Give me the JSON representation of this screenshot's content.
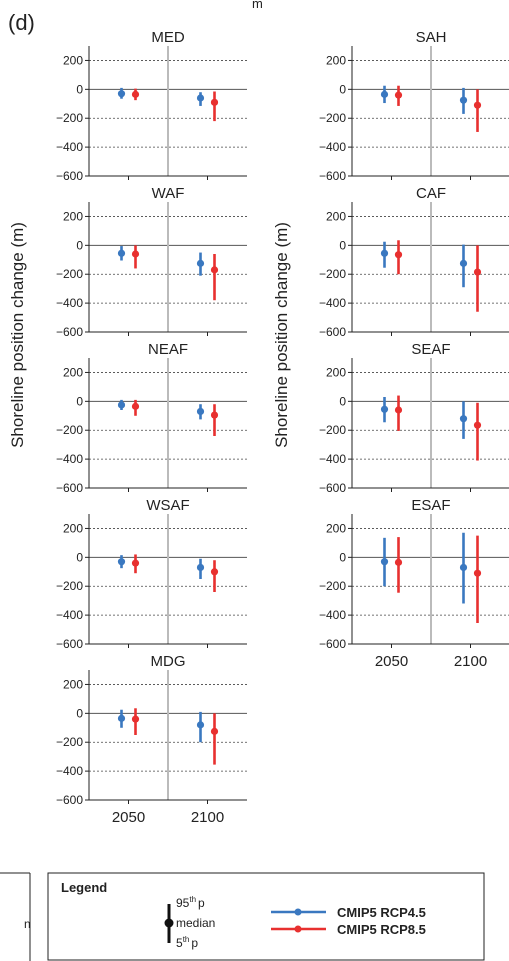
{
  "figure": {
    "panel_label": "(d)",
    "top_fragment": "m",
    "ylabel": "Shoreline position change (m)"
  },
  "legend": {
    "title": "Legend",
    "whisker": {
      "top": "95",
      "top_sup": "th",
      "top_suffix": "p",
      "mid": "median",
      "bottom": "5",
      "bottom_sup": "th",
      "bottom_suffix": "p"
    },
    "series": [
      {
        "name": "CMIP5 RCP4.5",
        "color": "#3a78c0"
      },
      {
        "name": "CMIP5 RCP8.5",
        "color": "#e8302f"
      }
    ],
    "left_fragment": "n"
  },
  "chart_data": [
    {
      "type": "errorbar",
      "title": "MED",
      "categories": [
        "2050",
        "2100"
      ],
      "ylim": [
        -600,
        300
      ],
      "yticks": [
        200,
        0,
        -200,
        -400,
        -600
      ],
      "ytick_labels": [
        "200",
        "0",
        "−200",
        "−400",
        "−600"
      ],
      "series": [
        {
          "name": "CMIP5 RCP4.5",
          "median": [
            -30,
            -60
          ],
          "p5": [
            -65,
            -115
          ],
          "p95": [
            10,
            -20
          ]
        },
        {
          "name": "CMIP5 RCP8.5",
          "median": [
            -35,
            -90
          ],
          "p5": [
            -75,
            -220
          ],
          "p95": [
            5,
            -15
          ]
        }
      ]
    },
    {
      "type": "errorbar",
      "title": "SAH",
      "categories": [
        "2050",
        "2100"
      ],
      "ylim": [
        -600,
        300
      ],
      "yticks": [
        200,
        0,
        -200,
        -400,
        -600
      ],
      "ytick_labels": [
        "200",
        "0",
        "−200",
        "−400",
        "−600"
      ],
      "series": [
        {
          "name": "CMIP5 RCP4.5",
          "median": [
            -35,
            -75
          ],
          "p5": [
            -95,
            -170
          ],
          "p95": [
            25,
            10
          ]
        },
        {
          "name": "CMIP5 RCP8.5",
          "median": [
            -40,
            -110
          ],
          "p5": [
            -115,
            -295
          ],
          "p95": [
            25,
            0
          ]
        }
      ]
    },
    {
      "type": "errorbar",
      "title": "WAF",
      "categories": [
        "2050",
        "2100"
      ],
      "ylim": [
        -600,
        300
      ],
      "yticks": [
        200,
        0,
        -200,
        -400,
        -600
      ],
      "ytick_labels": [
        "200",
        "0",
        "−200",
        "−400",
        "−600"
      ],
      "series": [
        {
          "name": "CMIP5 RCP4.5",
          "median": [
            -55,
            -125
          ],
          "p5": [
            -105,
            -210
          ],
          "p95": [
            -5,
            -50
          ]
        },
        {
          "name": "CMIP5 RCP8.5",
          "median": [
            -60,
            -170
          ],
          "p5": [
            -160,
            -380
          ],
          "p95": [
            0,
            -60
          ]
        }
      ]
    },
    {
      "type": "errorbar",
      "title": "CAF",
      "categories": [
        "2050",
        "2100"
      ],
      "ylim": [
        -600,
        300
      ],
      "yticks": [
        200,
        0,
        -200,
        -400,
        -600
      ],
      "ytick_labels": [
        "200",
        "0",
        "−200",
        "−400",
        "−600"
      ],
      "series": [
        {
          "name": "CMIP5 RCP4.5",
          "median": [
            -55,
            -125
          ],
          "p5": [
            -155,
            -290
          ],
          "p95": [
            25,
            5
          ]
        },
        {
          "name": "CMIP5 RCP8.5",
          "median": [
            -65,
            -185
          ],
          "p5": [
            -200,
            -460
          ],
          "p95": [
            35,
            0
          ]
        }
      ]
    },
    {
      "type": "errorbar",
      "title": "NEAF",
      "categories": [
        "2050",
        "2100"
      ],
      "ylim": [
        -600,
        300
      ],
      "yticks": [
        200,
        0,
        -200,
        -400,
        -600
      ],
      "ytick_labels": [
        "200",
        "0",
        "−200",
        "−400",
        "−600"
      ],
      "series": [
        {
          "name": "CMIP5 RCP4.5",
          "median": [
            -25,
            -70
          ],
          "p5": [
            -60,
            -125
          ],
          "p95": [
            10,
            -20
          ]
        },
        {
          "name": "CMIP5 RCP8.5",
          "median": [
            -35,
            -95
          ],
          "p5": [
            -100,
            -240
          ],
          "p95": [
            10,
            -20
          ]
        }
      ]
    },
    {
      "type": "errorbar",
      "title": "SEAF",
      "categories": [
        "2050",
        "2100"
      ],
      "ylim": [
        -600,
        300
      ],
      "yticks": [
        200,
        0,
        -200,
        -400,
        -600
      ],
      "ytick_labels": [
        "200",
        "0",
        "−200",
        "−400",
        "−600"
      ],
      "series": [
        {
          "name": "CMIP5 RCP4.5",
          "median": [
            -55,
            -120
          ],
          "p5": [
            -145,
            -260
          ],
          "p95": [
            30,
            0
          ]
        },
        {
          "name": "CMIP5 RCP8.5",
          "median": [
            -60,
            -165
          ],
          "p5": [
            -205,
            -410
          ],
          "p95": [
            40,
            -10
          ]
        }
      ]
    },
    {
      "type": "errorbar",
      "title": "WSAF",
      "categories": [
        "2050",
        "2100"
      ],
      "ylim": [
        -600,
        300
      ],
      "yticks": [
        200,
        0,
        -200,
        -400,
        -600
      ],
      "ytick_labels": [
        "200",
        "0",
        "−200",
        "−400",
        "−600"
      ],
      "series": [
        {
          "name": "CMIP5 RCP4.5",
          "median": [
            -30,
            -70
          ],
          "p5": [
            -75,
            -150
          ],
          "p95": [
            15,
            -10
          ]
        },
        {
          "name": "CMIP5 RCP8.5",
          "median": [
            -40,
            -100
          ],
          "p5": [
            -110,
            -240
          ],
          "p95": [
            20,
            -20
          ]
        }
      ]
    },
    {
      "type": "errorbar",
      "title": "ESAF",
      "categories": [
        "2050",
        "2100"
      ],
      "ylim": [
        -600,
        300
      ],
      "yticks": [
        200,
        0,
        -200,
        -400,
        -600
      ],
      "ytick_labels": [
        "200",
        "0",
        "−200",
        "−400",
        "−600"
      ],
      "series": [
        {
          "name": "CMIP5 RCP4.5",
          "median": [
            -30,
            -70
          ],
          "p5": [
            -200,
            -320
          ],
          "p95": [
            135,
            170
          ]
        },
        {
          "name": "CMIP5 RCP8.5",
          "median": [
            -35,
            -110
          ],
          "p5": [
            -245,
            -455
          ],
          "p95": [
            140,
            150
          ]
        }
      ]
    },
    {
      "type": "errorbar",
      "title": "MDG",
      "categories": [
        "2050",
        "2100"
      ],
      "ylim": [
        -600,
        300
      ],
      "yticks": [
        200,
        0,
        -200,
        -400,
        -600
      ],
      "ytick_labels": [
        "200",
        "0",
        "−200",
        "−400",
        "−600"
      ],
      "series": [
        {
          "name": "CMIP5 RCP4.5",
          "median": [
            -35,
            -80
          ],
          "p5": [
            -100,
            -200
          ],
          "p95": [
            25,
            10
          ]
        },
        {
          "name": "CMIP5 RCP8.5",
          "median": [
            -40,
            -125
          ],
          "p5": [
            -150,
            -355
          ],
          "p95": [
            35,
            0
          ]
        }
      ]
    }
  ]
}
